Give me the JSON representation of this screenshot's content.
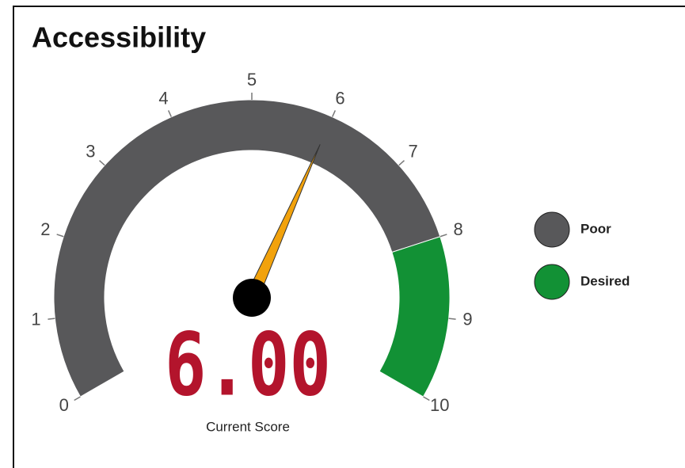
{
  "chart_data": {
    "type": "gauge",
    "title": "Accessibility",
    "value": 6,
    "value_labels": [
      "6.00"
    ],
    "value_caption": "Current Score",
    "range": [
      0,
      10
    ],
    "ticks": [
      0,
      1,
      2,
      3,
      4,
      5,
      6,
      7,
      8,
      9,
      10
    ],
    "bands": [
      {
        "name": "Poor",
        "from": 0,
        "to": 8,
        "color": "#58585a"
      },
      {
        "name": "Desired",
        "from": 8,
        "to": 10,
        "color": "#129135"
      }
    ],
    "needle_color": "#f2a20c",
    "display_color": "#b3142c"
  }
}
